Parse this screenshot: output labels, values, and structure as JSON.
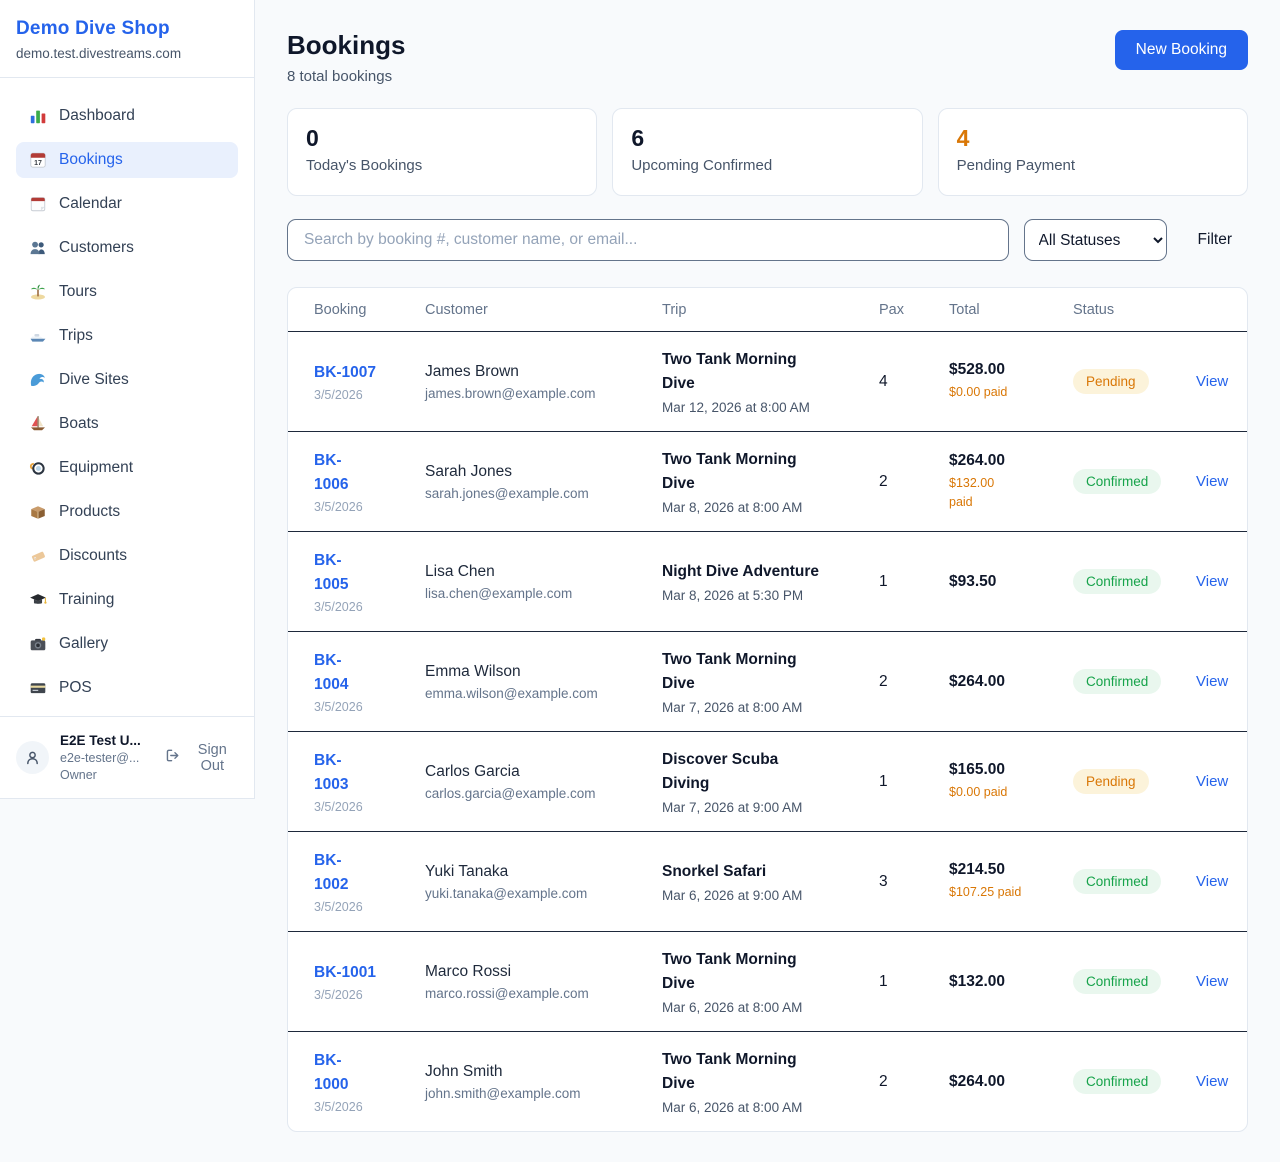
{
  "colors": {
    "accent": "#2563eb",
    "page_bg": "#f8fafc",
    "pending_text": "#d97706",
    "pending_bg": "#fcf3da",
    "confirmed_text": "#16a34a",
    "confirmed_bg": "#e9f7ee",
    "paid_amount": "#d97706",
    "row_divider": "#1e293b"
  },
  "sidebar": {
    "shop_name": "Demo Dive Shop",
    "domain": "demo.test.divestreams.com",
    "items": [
      {
        "icon": "bar-chart-icon",
        "label": "Dashboard",
        "active": false
      },
      {
        "icon": "calendar-17-icon",
        "label": "Bookings",
        "active": true
      },
      {
        "icon": "calendar-icon",
        "label": "Calendar",
        "active": false
      },
      {
        "icon": "users-icon",
        "label": "Customers",
        "active": false
      },
      {
        "icon": "island-icon",
        "label": "Tours",
        "active": false
      },
      {
        "icon": "speedboat-icon",
        "label": "Trips",
        "active": false
      },
      {
        "icon": "wave-icon",
        "label": "Dive Sites",
        "active": false
      },
      {
        "icon": "sailboat-icon",
        "label": "Boats",
        "active": false
      },
      {
        "icon": "dive-mask-icon",
        "label": "Equipment",
        "active": false
      },
      {
        "icon": "package-icon",
        "label": "Products",
        "active": false
      },
      {
        "icon": "tag-icon",
        "label": "Discounts",
        "active": false
      },
      {
        "icon": "grad-cap-icon",
        "label": "Training",
        "active": false
      },
      {
        "icon": "camera-icon",
        "label": "Gallery",
        "active": false
      },
      {
        "icon": "credit-card-icon",
        "label": "POS",
        "active": false
      }
    ],
    "user": {
      "name": "E2E Test U...",
      "email": "e2e-tester@...",
      "role": "Owner",
      "sign_out": "Sign Out"
    }
  },
  "header": {
    "title": "Bookings",
    "subtitle": "8 total bookings",
    "new_booking": "New Booking"
  },
  "stats": [
    {
      "value": "0",
      "label": "Today's Bookings",
      "orange": false
    },
    {
      "value": "6",
      "label": "Upcoming Confirmed",
      "orange": false
    },
    {
      "value": "4",
      "label": "Pending Payment",
      "orange": true
    }
  ],
  "filters": {
    "search_placeholder": "Search by booking #, customer name, or email...",
    "status_select": "All Statuses",
    "filter_label": "Filter"
  },
  "table": {
    "headers": [
      "Booking",
      "Customer",
      "Trip",
      "Pax",
      "Total",
      "Status",
      ""
    ],
    "rows": [
      {
        "id": "BK-1007",
        "date": "3/5/2026",
        "customer": "James Brown",
        "email": "james.brown@example.com",
        "trip": "Two Tank Morning\nDive",
        "when": "Mar 12, 2026 at 8:00 AM",
        "pax": "4",
        "total": "$528.00",
        "paid": "$0.00 paid",
        "status": "Pending",
        "view": "View"
      },
      {
        "id": "BK-\n1006",
        "date": "3/5/2026",
        "customer": "Sarah Jones",
        "email": "sarah.jones@example.com",
        "trip": "Two Tank Morning\nDive",
        "when": "Mar 8, 2026 at 8:00 AM",
        "pax": "2",
        "total": "$264.00",
        "paid": "$132.00\npaid",
        "status": "Confirmed",
        "view": "View"
      },
      {
        "id": "BK-\n1005",
        "date": "3/5/2026",
        "customer": "Lisa Chen",
        "email": "lisa.chen@example.com",
        "trip": "Night Dive Adventure",
        "when": "Mar 8, 2026 at 5:30 PM",
        "pax": "1",
        "total": "$93.50",
        "paid": "",
        "status": "Confirmed",
        "view": "View"
      },
      {
        "id": "BK-\n1004",
        "date": "3/5/2026",
        "customer": "Emma Wilson",
        "email": "emma.wilson@example.com",
        "trip": "Two Tank Morning\nDive",
        "when": "Mar 7, 2026 at 8:00 AM",
        "pax": "2",
        "total": "$264.00",
        "paid": "",
        "status": "Confirmed",
        "view": "View"
      },
      {
        "id": "BK-\n1003",
        "date": "3/5/2026",
        "customer": "Carlos Garcia",
        "email": "carlos.garcia@example.com",
        "trip": "Discover Scuba\nDiving",
        "when": "Mar 7, 2026 at 9:00 AM",
        "pax": "1",
        "total": "$165.00",
        "paid": "$0.00 paid",
        "status": "Pending",
        "view": "View"
      },
      {
        "id": "BK-\n1002",
        "date": "3/5/2026",
        "customer": "Yuki Tanaka",
        "email": "yuki.tanaka@example.com",
        "trip": "Snorkel Safari",
        "when": "Mar 6, 2026 at 9:00 AM",
        "pax": "3",
        "total": "$214.50",
        "paid": "$107.25 paid",
        "status": "Confirmed",
        "view": "View"
      },
      {
        "id": "BK-1001",
        "date": "3/5/2026",
        "customer": "Marco Rossi",
        "email": "marco.rossi@example.com",
        "trip": "Two Tank Morning\nDive",
        "when": "Mar 6, 2026 at 8:00 AM",
        "pax": "1",
        "total": "$132.00",
        "paid": "",
        "status": "Confirmed",
        "view": "View"
      },
      {
        "id": "BK-\n1000",
        "date": "3/5/2026",
        "customer": "John Smith",
        "email": "john.smith@example.com",
        "trip": "Two Tank Morning\nDive",
        "when": "Mar 6, 2026 at 8:00 AM",
        "pax": "2",
        "total": "$264.00",
        "paid": "",
        "status": "Confirmed",
        "view": "View"
      }
    ]
  }
}
